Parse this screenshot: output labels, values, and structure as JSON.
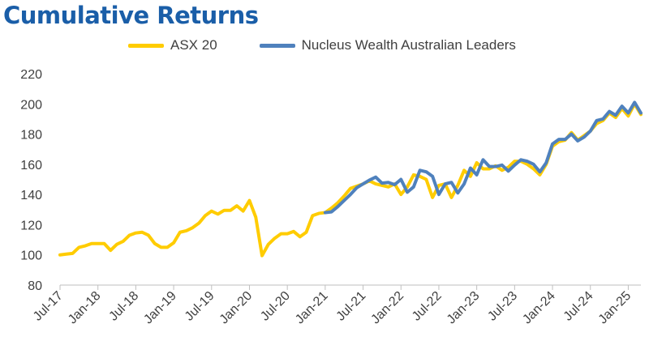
{
  "chart_data": {
    "type": "line",
    "title": "Cumulative Returns",
    "xlabel": "",
    "ylabel": "",
    "ylim": [
      80,
      220
    ],
    "yticks": [
      80,
      100,
      120,
      140,
      160,
      180,
      200,
      220
    ],
    "x_tick_labels": [
      "Jul-17",
      "Jan-18",
      "Jul-18",
      "Jan-19",
      "Jul-19",
      "Jan-20",
      "Jul-20",
      "Jan-21",
      "Jul-21",
      "Jan-22",
      "Jul-22",
      "Jan-23",
      "Jul-23",
      "Jan-24",
      "Jul-24",
      "Jan-25"
    ],
    "x_start": "Jul-17",
    "grid": false,
    "legend": "top",
    "series": [
      {
        "name": "ASX 20",
        "color": "#ffcc00",
        "start_offset_months": 0,
        "values": [
          100,
          100.5,
          101,
          105,
          106,
          107.5,
          107.5,
          107.5,
          103,
          107,
          109,
          113,
          114.5,
          115,
          113,
          107.5,
          105,
          105,
          108,
          115,
          116,
          118,
          121,
          126,
          129,
          127,
          129.5,
          129.5,
          132.5,
          129,
          136,
          125,
          99.5,
          107,
          111,
          114,
          114,
          115.5,
          112,
          115,
          126,
          127.5,
          128,
          131,
          134.5,
          139,
          144,
          145.5,
          147,
          149,
          147,
          146,
          145,
          147,
          140,
          145,
          153,
          152,
          150,
          138,
          146,
          147,
          138,
          146,
          156,
          152,
          161,
          157,
          157,
          159,
          156,
          158,
          162,
          162,
          160,
          157,
          153,
          160,
          172,
          175,
          176,
          181,
          176,
          179,
          182,
          187,
          189,
          194,
          191,
          197,
          192,
          200,
          193
        ]
      },
      {
        "name": "Nucleus Wealth Australian Leaders",
        "color": "#4f81bd",
        "start_offset_months": 42,
        "values": [
          128,
          128.5,
          132,
          136,
          140,
          144.5,
          147,
          149.5,
          151.5,
          147.5,
          148,
          146.5,
          150,
          141.5,
          145,
          156,
          155,
          152,
          140,
          147,
          148,
          141,
          147,
          157.5,
          153,
          163,
          158.5,
          158.5,
          159.5,
          155.5,
          159.5,
          163,
          162,
          160,
          155,
          161,
          173.5,
          176.5,
          176.5,
          180,
          175.5,
          178,
          182,
          189,
          190,
          195,
          192.5,
          198.5,
          194,
          201,
          194
        ]
      }
    ]
  }
}
